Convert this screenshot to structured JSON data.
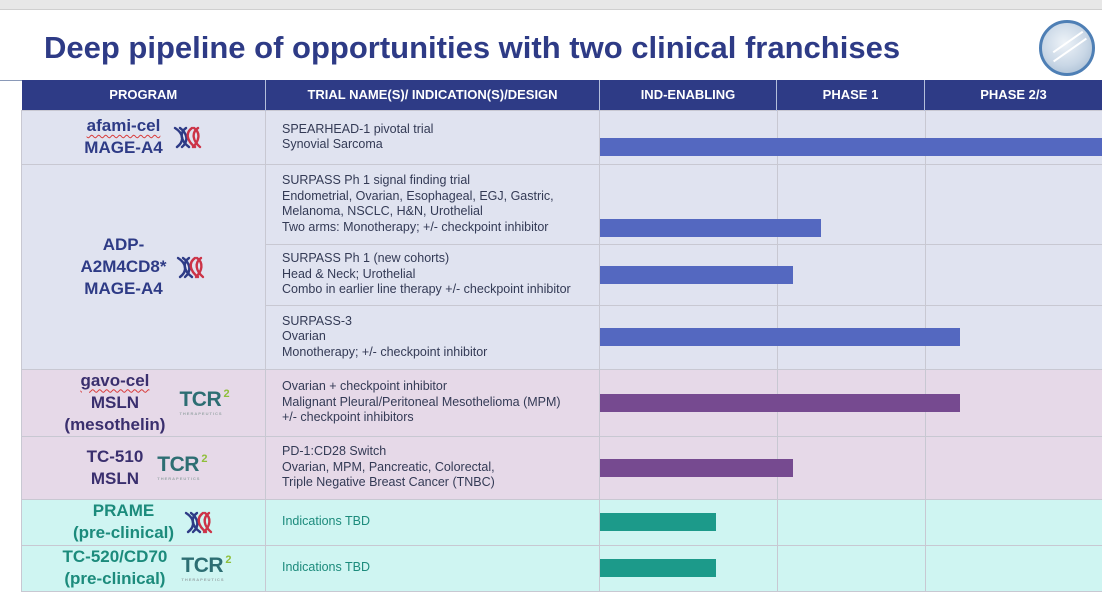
{
  "title": "Deep pipeline of opportunities with two clinical franchises",
  "headers": [
    "PROGRAM",
    "TRIAL NAME(S)/ INDICATION(S)/DESIGN",
    "IND-ENABLING",
    "PHASE 1",
    "PHASE  2/3"
  ],
  "programs": [
    {
      "lines": [
        "afami-cel",
        "MAGE-A4"
      ],
      "icon": "adaptimmune-x-icon"
    },
    {
      "lines": [
        "ADP-",
        "A2M4CD8*",
        "MAGE-A4"
      ],
      "icon": "adaptimmune-x-icon"
    },
    {
      "lines": [
        "gavo-cel",
        "MSLN",
        "(mesothelin)"
      ],
      "icon": "tcr2-logo-icon"
    },
    {
      "lines": [
        "TC-510",
        "MSLN"
      ],
      "icon": "tcr2-logo-icon"
    },
    {
      "lines": [
        "PRAME",
        "(pre-clinical)"
      ],
      "icon": "adaptimmune-x-icon"
    },
    {
      "lines": [
        "TC-520/CD70",
        "(pre-clinical)"
      ],
      "icon": "tcr2-logo-icon"
    }
  ],
  "trials": [
    {
      "lines": [
        "SPEARHEAD-1 pivotal trial",
        "Synovial Sarcoma"
      ],
      "progress_phase": 3.0,
      "color": "#5468c0"
    },
    {
      "lines": [
        "SURPASS Ph 1 signal finding trial",
        "Endometrial, Ovarian, Esophageal, EGJ, Gastric,",
        "Melanoma, NSCLC, H&N, Urothelial",
        "Two arms: Monotherapy; +/- checkpoint inhibitor"
      ],
      "progress_phase": 1.3,
      "color": "#5468c0"
    },
    {
      "lines": [
        "SURPASS Ph 1 (new cohorts)",
        "Head & Neck; Urothelial",
        "Combo in earlier line therapy +/- checkpoint inhibitor"
      ],
      "progress_phase": 1.11,
      "color": "#5468c0"
    },
    {
      "lines": [
        "SURPASS-3",
        "Ovarian",
        "Monotherapy; +/- checkpoint inhibitor"
      ],
      "progress_phase": 2.2,
      "color": "#5468c0"
    },
    {
      "lines": [
        "Ovarian + checkpoint inhibitor",
        "Malignant Pleural/Peritoneal Mesothelioma (MPM)",
        "+/- checkpoint inhibitors"
      ],
      "progress_phase": 2.2,
      "color": "#764a90"
    },
    {
      "lines": [
        "PD-1:CD28 Switch",
        "Ovarian, MPM, Pancreatic, Colorectal,",
        "Triple Negative Breast Cancer (TNBC)"
      ],
      "progress_phase": 1.11,
      "color": "#764a90"
    },
    {
      "lines": [
        "Indications TBD"
      ],
      "progress_phase": 0.66,
      "color": "#1c9a8a"
    },
    {
      "lines": [
        "Indications TBD"
      ],
      "progress_phase": 0.66,
      "color": "#1c9a8a"
    }
  ],
  "tcr_sub": "THERAPEUTICS"
}
